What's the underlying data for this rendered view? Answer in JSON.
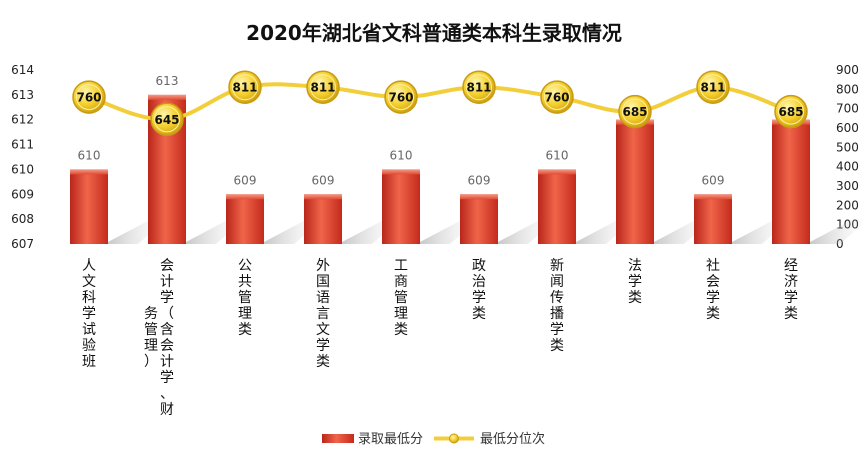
{
  "chart_data": {
    "type": "bar",
    "title": "2020年湖北省文科普通类本科生录取情况",
    "categories": [
      "人文科学试验班",
      "会计学（含会计学、财务管理）",
      "公共管理类",
      "外国语言文学类",
      "工商管理类",
      "政治学类",
      "新闻传播学类",
      "法学类",
      "社会学类",
      "经济学类"
    ],
    "category_lines": [
      [
        "人文科学试验班"
      ],
      [
        "会计学（含会计学、财",
        "务管理）"
      ],
      [
        "公共管理类"
      ],
      [
        "外国语言文学类"
      ],
      [
        "工商管理类"
      ],
      [
        "政治学类"
      ],
      [
        "新闻传播学类"
      ],
      [
        "法学类"
      ],
      [
        "社会学类"
      ],
      [
        "经济学类"
      ]
    ],
    "series": [
      {
        "name": "录取最低分",
        "type": "bar",
        "axis": "left",
        "color": "#d93a26",
        "values": [
          610,
          613,
          609,
          609,
          610,
          609,
          610,
          612,
          609,
          612
        ]
      },
      {
        "name": "最低分位次",
        "type": "line",
        "axis": "right",
        "color": "#f2cf3a",
        "values": [
          760,
          645,
          811,
          811,
          760,
          811,
          760,
          685,
          811,
          685
        ]
      }
    ],
    "y_left": {
      "min": 607,
      "max": 614,
      "ticks": [
        607,
        608,
        609,
        610,
        611,
        612,
        613,
        614
      ]
    },
    "y_right": {
      "min": 0,
      "max": 900,
      "ticks": [
        0,
        100,
        200,
        300,
        400,
        500,
        600,
        700,
        800,
        900
      ]
    },
    "legend": {
      "position": "bottom",
      "items": [
        {
          "label": "录取最低分",
          "kind": "bar"
        },
        {
          "label": "最低分位次",
          "kind": "line"
        }
      ]
    },
    "grid": false
  }
}
